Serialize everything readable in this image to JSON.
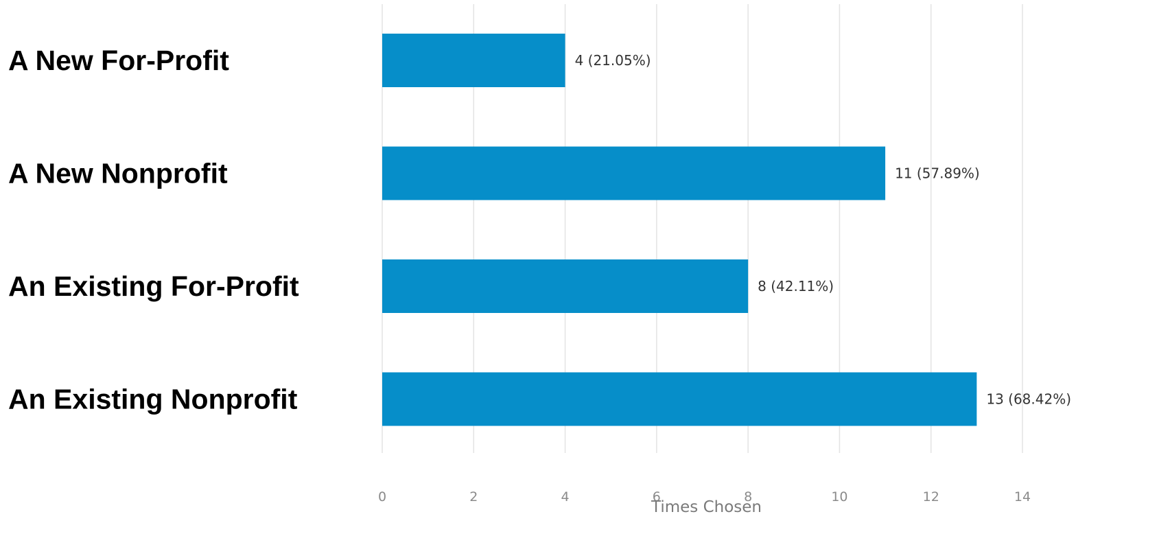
{
  "chart_data": {
    "type": "bar",
    "orientation": "horizontal",
    "categories": [
      "A New For-Profit",
      "A New Nonprofit",
      "An Existing For-Profit",
      "An Existing Nonprofit"
    ],
    "values": [
      4,
      11,
      8,
      13
    ],
    "data_labels": [
      "4 (21.05%)",
      "11 (57.89%)",
      "8 (42.11%)",
      "13 (68.42%)"
    ],
    "xlabel": "Times Chosen",
    "ylabel": "",
    "title": "",
    "xlim": [
      0,
      14
    ],
    "xticks": [
      0,
      2,
      4,
      6,
      8,
      10,
      12,
      14
    ],
    "grid": "vertical",
    "legend": "none",
    "bar_color": "#068ec9"
  }
}
